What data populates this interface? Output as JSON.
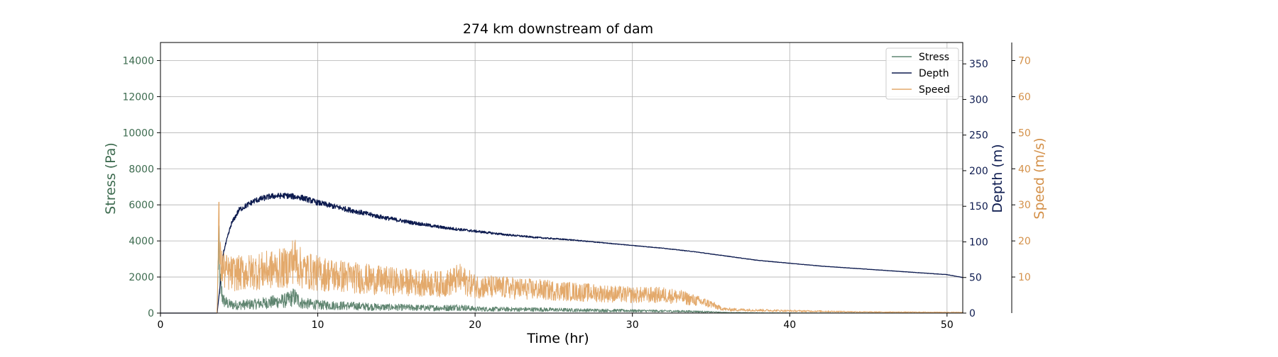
{
  "chart_data": {
    "type": "line",
    "title": "274 km downstream of dam",
    "xlabel": "Time (hr)",
    "xlim": [
      0,
      51
    ],
    "xticks": [
      0,
      10,
      20,
      30,
      40,
      50
    ],
    "grid": true,
    "legend_position": "top-right",
    "axes": {
      "stress": {
        "label": "Stress (Pa)",
        "ylim": [
          0,
          15000
        ],
        "ticks": [
          0,
          2000,
          4000,
          6000,
          8000,
          10000,
          12000,
          14000
        ],
        "color": "#3d6b4f"
      },
      "depth": {
        "label": "Depth (m)",
        "ylim": [
          0,
          380
        ],
        "ticks": [
          0,
          50,
          100,
          150,
          200,
          250,
          300,
          350
        ],
        "color": "#0d1b4f"
      },
      "speed": {
        "label": "Speed (m/s)",
        "ylim": [
          0,
          75
        ],
        "ticks": [
          10,
          20,
          30,
          40,
          50,
          60,
          70
        ],
        "color": "#d4914a"
      }
    },
    "series": [
      {
        "name": "Stress",
        "axis": "stress",
        "color": "#5f8570",
        "x": [
          0,
          3.6,
          3.7,
          3.8,
          4.0,
          4.3,
          4.6,
          5,
          6,
          7,
          8,
          8.5,
          9,
          10,
          12,
          14,
          16,
          18,
          19,
          20,
          22,
          24,
          26,
          28,
          30,
          32,
          34,
          35,
          36,
          38,
          40,
          45,
          51
        ],
        "y": [
          0,
          0,
          3600,
          1500,
          700,
          500,
          450,
          450,
          500,
          600,
          700,
          900,
          550,
          450,
          400,
          330,
          300,
          280,
          330,
          230,
          210,
          200,
          170,
          150,
          130,
          110,
          90,
          60,
          30,
          15,
          10,
          5,
          3
        ]
      },
      {
        "name": "Depth",
        "axis": "depth",
        "color": "#0d1b4f",
        "x": [
          0,
          3.6,
          3.8,
          4.0,
          4.5,
          5,
          6,
          7,
          8,
          9,
          10,
          12,
          14,
          16,
          18,
          20,
          22,
          24,
          26,
          28,
          30,
          32,
          34,
          36,
          38,
          40,
          42,
          44,
          46,
          48,
          50,
          51
        ],
        "y": [
          0,
          0,
          40,
          85,
          125,
          145,
          158,
          164,
          165,
          162,
          155,
          145,
          135,
          127,
          120,
          115,
          110,
          106,
          103,
          99,
          95,
          91,
          86,
          80,
          74,
          70,
          66,
          63,
          60,
          57,
          54,
          50
        ]
      },
      {
        "name": "Speed",
        "axis": "speed",
        "color": "#e3a96b",
        "x": [
          0,
          3.6,
          3.7,
          3.8,
          4.0,
          4.3,
          5,
          6,
          7,
          8,
          8.5,
          9,
          10,
          12,
          14,
          16,
          18,
          19,
          20,
          22,
          24,
          26,
          28,
          30,
          32,
          33,
          34,
          35,
          35.5,
          36,
          38,
          40,
          42,
          45,
          51
        ],
        "y": [
          0,
          0,
          25,
          14,
          12,
          11,
          11,
          11.5,
          12,
          12.5,
          15,
          12,
          11,
          10,
          9,
          8.5,
          8,
          9.5,
          7.5,
          7,
          6.5,
          6,
          5.5,
          5,
          5,
          4.5,
          3.5,
          2.5,
          1.5,
          1,
          0.8,
          0.6,
          0.5,
          0.3,
          0.2
        ]
      }
    ]
  }
}
